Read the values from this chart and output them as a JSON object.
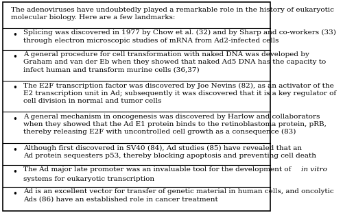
{
  "header": "The adenoviruses have undoubtedly played a remarkable role in the history of eukaryotic\nmolecular biology. Here are a few landmarks:",
  "bullet_items": [
    "Splicing was discovered in 1977 by Chow et al. (32) and by Sharp and co-workers (33)\nthrough electron microscopic studies of mRNA from Ad2-infected cells",
    "A general procedure for cell transformation with naked DNA was developed by\nGraham and van der Eb when they showed that naked Ad5 DNA has the capacity to\ninfect human and transform murine cells (36,37)",
    "The E2F transcription factor was discovered by Joe Nevins (82), as an activator of the\nE2 transcription unit in Ad; subsequently it was discovered that it is a key regulator of\ncell division in normal and tumor cells",
    "A general mechanism in oncogenesis was discovered by Harlow and collaborators\nwhen they showed that the Ad E1 protein binds to the retinoblastoma protein, pRB,\nthereby releasing E2F with uncontrolled cell growth as a consequence (83)",
    "Although first discovered in SV40 (84), Ad studies (85) have revealed that an\nAd protein sequesters p53, thereby blocking apoptosis and preventing cell death",
    "The Ad major late promoter was an invaluable tool for the development of in vitro\nsystems for eukaryotic transcription",
    "Ad is an excellent vector for transfer of genetic material in human cells, and oncolytic\nAds (86) have an established role in cancer treatment"
  ],
  "background_color": "#ffffff",
  "border_color": "#000000",
  "text_color": "#000000",
  "font_size": 7.5
}
